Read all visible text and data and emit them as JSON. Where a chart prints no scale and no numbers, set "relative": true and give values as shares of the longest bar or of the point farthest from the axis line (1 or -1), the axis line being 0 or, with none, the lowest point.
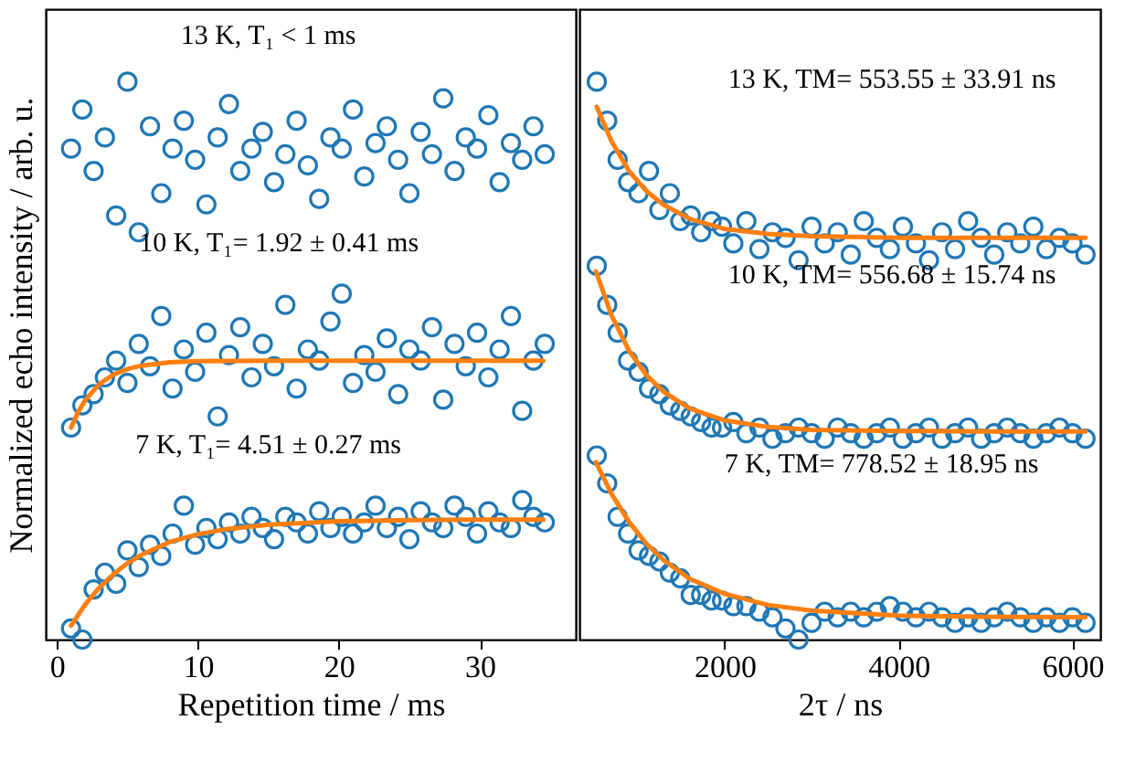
{
  "chart_data": [
    {
      "type": "scatter",
      "relative": true,
      "xlabel": "Repetition time / ms",
      "ylabel": "Normalized echo intensity / arb. u.",
      "xlim": [
        -0.8,
        36.8
      ],
      "xticks": [
        0,
        10,
        20,
        30
      ],
      "marker": "circle",
      "tick_labels": "x",
      "grid": false,
      "legend": false,
      "annotations": [
        "13 K, T₁ < 1 ms",
        "10 K, T₁= 1.92 ± 0.41 ms",
        "7 K, T₁= 4.51 ± 0.27 ms"
      ],
      "series": [
        {
          "color": "#1f77b4",
          "x": [
            1,
            1.8,
            2.6,
            3.4,
            4.2,
            5,
            5.8,
            6.6,
            7.4,
            8.2,
            9,
            9.8,
            10.6,
            11.4,
            12.2,
            13,
            13.8,
            14.6,
            15.4,
            16.2,
            17,
            17.8,
            18.6,
            19.4,
            20.2,
            21,
            21.8,
            22.6,
            23.4,
            24.2,
            25,
            25.8,
            26.6,
            27.4,
            28.2,
            29,
            29.8,
            30.6,
            31.4,
            32.2,
            33,
            33.8,
            34.6
          ],
          "values": [
            0.88,
            0.95,
            0.84,
            0.9,
            0.76,
            1.0,
            0.73,
            0.92,
            0.8,
            0.88,
            0.93,
            0.86,
            0.78,
            0.9,
            0.96,
            0.84,
            0.88,
            0.91,
            0.82,
            0.87,
            0.93,
            0.85,
            0.79,
            0.9,
            0.88,
            0.95,
            0.83,
            0.89,
            0.92,
            0.86,
            0.8,
            0.91,
            0.87,
            0.97,
            0.84,
            0.9,
            0.88,
            0.94,
            0.82,
            0.89,
            0.86,
            0.92,
            0.87
          ]
        },
        {
          "color": "#1f77b4",
          "x": [
            1,
            1.8,
            2.6,
            3.4,
            4.2,
            5,
            5.8,
            6.6,
            7.4,
            8.2,
            9,
            9.8,
            10.6,
            11.4,
            12.2,
            13,
            13.8,
            14.6,
            15.4,
            16.2,
            17,
            17.8,
            18.6,
            19.4,
            20.2,
            21,
            21.8,
            22.6,
            23.4,
            24.2,
            25,
            25.8,
            26.6,
            27.4,
            28.2,
            29,
            29.8,
            30.6,
            31.4,
            32.2,
            33,
            33.8,
            34.6
          ],
          "values": [
            0.38,
            0.42,
            0.44,
            0.47,
            0.5,
            0.46,
            0.53,
            0.49,
            0.58,
            0.45,
            0.52,
            0.48,
            0.55,
            0.4,
            0.51,
            0.56,
            0.47,
            0.53,
            0.49,
            0.6,
            0.45,
            0.52,
            0.5,
            0.57,
            0.62,
            0.46,
            0.51,
            0.48,
            0.54,
            0.44,
            0.52,
            0.5,
            0.56,
            0.43,
            0.53,
            0.49,
            0.55,
            0.47,
            0.52,
            0.58,
            0.41,
            0.5,
            0.53
          ]
        },
        {
          "color": "#1f77b4",
          "x": [
            1,
            1.8,
            2.6,
            3.4,
            4.2,
            5,
            5.8,
            6.6,
            7.4,
            8.2,
            9,
            9.8,
            10.6,
            11.4,
            12.2,
            13,
            13.8,
            14.6,
            15.4,
            16.2,
            17,
            17.8,
            18.6,
            19.4,
            20.2,
            21,
            21.8,
            22.6,
            23.4,
            24.2,
            25,
            25.8,
            26.6,
            27.4,
            28.2,
            29,
            29.8,
            30.6,
            31.4,
            32.2,
            33,
            33.8,
            34.6
          ],
          "values": [
            0.02,
            0.0,
            0.09,
            0.12,
            0.1,
            0.16,
            0.13,
            0.17,
            0.15,
            0.19,
            0.24,
            0.17,
            0.2,
            0.18,
            0.21,
            0.19,
            0.22,
            0.2,
            0.18,
            0.22,
            0.21,
            0.19,
            0.23,
            0.2,
            0.22,
            0.19,
            0.21,
            0.24,
            0.2,
            0.22,
            0.18,
            0.23,
            0.21,
            0.2,
            0.24,
            0.22,
            0.19,
            0.23,
            0.21,
            0.2,
            0.25,
            0.22,
            0.21
          ]
        },
        {
          "type": "line",
          "color": "#ff7f0e",
          "marker": "none",
          "x": [
            1,
            1.5,
            2,
            3,
            4,
            5,
            6,
            8,
            10,
            15,
            20,
            25,
            30,
            34.5
          ],
          "values": [
            0.38,
            0.408,
            0.429,
            0.458,
            0.475,
            0.485,
            0.491,
            0.497,
            0.499,
            0.5,
            0.5,
            0.5,
            0.5,
            0.5
          ]
        },
        {
          "type": "line",
          "color": "#ff7f0e",
          "marker": "none",
          "x": [
            1,
            2,
            3,
            4,
            5,
            6,
            8,
            10,
            12,
            15,
            20,
            25,
            30,
            34.5
          ],
          "values": [
            0.025,
            0.063,
            0.093,
            0.117,
            0.137,
            0.152,
            0.175,
            0.189,
            0.198,
            0.206,
            0.212,
            0.214,
            0.215,
            0.215
          ]
        }
      ]
    },
    {
      "type": "scatter",
      "relative": true,
      "xlabel": "2τ  / ns",
      "xlim": [
        330,
        6320
      ],
      "xticks": [
        2000,
        4000,
        6000
      ],
      "marker": "circle",
      "tick_labels": "x",
      "grid": false,
      "legend": false,
      "annotations": [
        "13 K, TM= 553.55 ± 33.91 ns",
        "10 K, TM= 556.68 ± 15.74 ns",
        "7 K, TM= 778.52 ± 18.95 ns"
      ],
      "series": [
        {
          "color": "#1f77b4",
          "x": [
            530,
            650,
            770,
            890,
            1010,
            1130,
            1250,
            1370,
            1490,
            1610,
            1730,
            1850,
            1970,
            2100,
            2250,
            2400,
            2550,
            2700,
            2850,
            3000,
            3150,
            3300,
            3450,
            3600,
            3750,
            3900,
            4050,
            4200,
            4350,
            4500,
            4650,
            4800,
            4950,
            5100,
            5250,
            5400,
            5550,
            5700,
            5850,
            6000,
            6150
          ],
          "values": [
            1.0,
            0.93,
            0.86,
            0.82,
            0.8,
            0.84,
            0.77,
            0.8,
            0.75,
            0.76,
            0.73,
            0.75,
            0.74,
            0.71,
            0.75,
            0.7,
            0.73,
            0.72,
            0.68,
            0.74,
            0.71,
            0.73,
            0.69,
            0.75,
            0.72,
            0.7,
            0.74,
            0.71,
            0.68,
            0.73,
            0.7,
            0.75,
            0.72,
            0.69,
            0.73,
            0.71,
            0.74,
            0.7,
            0.72,
            0.71,
            0.69
          ]
        },
        {
          "color": "#1f77b4",
          "x": [
            530,
            650,
            770,
            890,
            1010,
            1130,
            1250,
            1370,
            1490,
            1610,
            1730,
            1850,
            1970,
            2100,
            2250,
            2400,
            2550,
            2700,
            2850,
            3000,
            3150,
            3300,
            3450,
            3600,
            3750,
            3900,
            4050,
            4200,
            4350,
            4500,
            4650,
            4800,
            4950,
            5100,
            5250,
            5400,
            5550,
            5700,
            5850,
            6000,
            6150
          ],
          "values": [
            0.67,
            0.6,
            0.55,
            0.5,
            0.48,
            0.45,
            0.44,
            0.42,
            0.41,
            0.4,
            0.39,
            0.38,
            0.38,
            0.39,
            0.37,
            0.38,
            0.36,
            0.37,
            0.38,
            0.37,
            0.36,
            0.38,
            0.37,
            0.36,
            0.37,
            0.38,
            0.36,
            0.37,
            0.38,
            0.36,
            0.37,
            0.38,
            0.36,
            0.37,
            0.38,
            0.37,
            0.36,
            0.37,
            0.38,
            0.37,
            0.36
          ]
        },
        {
          "color": "#1f77b4",
          "x": [
            530,
            650,
            770,
            890,
            1010,
            1130,
            1250,
            1370,
            1490,
            1610,
            1730,
            1850,
            1970,
            2100,
            2250,
            2400,
            2550,
            2700,
            2850,
            3000,
            3150,
            3300,
            3450,
            3600,
            3750,
            3900,
            4050,
            4200,
            4350,
            4500,
            4650,
            4800,
            4950,
            5100,
            5250,
            5400,
            5550,
            5700,
            5850,
            6000,
            6150
          ],
          "values": [
            0.33,
            0.28,
            0.22,
            0.19,
            0.16,
            0.15,
            0.14,
            0.12,
            0.11,
            0.08,
            0.08,
            0.07,
            0.07,
            0.06,
            0.06,
            0.05,
            0.04,
            0.02,
            0.0,
            0.03,
            0.05,
            0.04,
            0.05,
            0.04,
            0.05,
            0.06,
            0.05,
            0.04,
            0.05,
            0.04,
            0.03,
            0.04,
            0.03,
            0.04,
            0.05,
            0.04,
            0.03,
            0.04,
            0.03,
            0.04,
            0.03
          ]
        },
        {
          "type": "line",
          "color": "#ff7f0e",
          "marker": "none",
          "x": [
            530,
            700,
            900,
            1100,
            1300,
            1600,
            2000,
            2500,
            3000,
            4000,
            5000,
            6150
          ],
          "values": [
            0.955,
            0.893,
            0.84,
            0.804,
            0.779,
            0.754,
            0.736,
            0.727,
            0.723,
            0.72,
            0.72,
            0.72
          ]
        },
        {
          "type": "line",
          "color": "#ff7f0e",
          "marker": "none",
          "x": [
            520,
            700,
            900,
            1100,
            1300,
            1600,
            2000,
            2500,
            3000,
            4000,
            5000,
            6150
          ],
          "values": [
            0.66,
            0.581,
            0.518,
            0.474,
            0.444,
            0.414,
            0.393,
            0.381,
            0.376,
            0.374,
            0.373,
            0.373
          ]
        },
        {
          "type": "line",
          "color": "#ff7f0e",
          "marker": "none",
          "x": [
            520,
            700,
            900,
            1100,
            1300,
            1600,
            2000,
            2500,
            3000,
            4000,
            5000,
            6150
          ],
          "values": [
            0.318,
            0.261,
            0.211,
            0.172,
            0.142,
            0.109,
            0.082,
            0.062,
            0.052,
            0.043,
            0.041,
            0.04
          ]
        }
      ]
    }
  ]
}
